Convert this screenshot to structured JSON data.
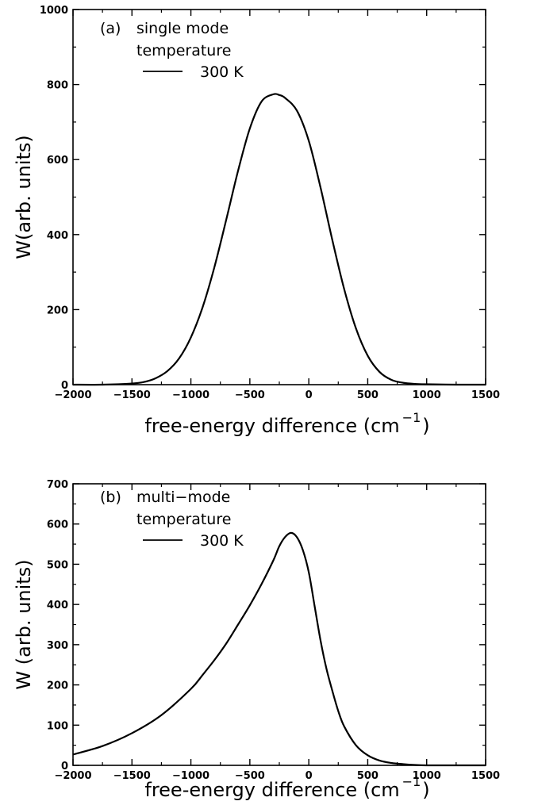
{
  "chart_data": [
    {
      "type": "line",
      "panel_label": "(a)",
      "xlabel": "free-energy difference (cm",
      "xlabel_suffix": ")",
      "xlabel_superscript": "−1",
      "ylabel": "W(arb. units)",
      "xlim": [
        -2000,
        1500
      ],
      "ylim": [
        0,
        1000
      ],
      "xticks": [
        -2000,
        -1500,
        -1000,
        -500,
        0,
        500,
        1000,
        1500
      ],
      "yticks": [
        0,
        200,
        400,
        600,
        800,
        1000
      ],
      "xtick_labels": [
        "−2000",
        "−1500",
        "−1000",
        "−500",
        "0",
        "500",
        "1000",
        "1500"
      ],
      "ytick_labels": [
        "0",
        "200",
        "400",
        "600",
        "800",
        "1000"
      ],
      "legend": {
        "line1": "single mode",
        "line2": "temperature",
        "entry": "300 K",
        "placement": "top-left"
      },
      "series": [
        {
          "name": "300 K",
          "x": [
            -2000,
            -1750,
            -1500,
            -1400,
            -1300,
            -1200,
            -1100,
            -1000,
            -900,
            -800,
            -700,
            -600,
            -500,
            -400,
            -300,
            -250,
            -200,
            -100,
            0,
            100,
            200,
            300,
            400,
            500,
            600,
            700,
            800,
            900,
            1000,
            1250,
            1500
          ],
          "y": [
            0,
            0,
            3,
            7,
            17,
            36,
            70,
            126,
            207,
            314,
            440,
            570,
            683,
            755,
            774,
            772,
            764,
            730,
            650,
            525,
            385,
            255,
            150,
            77,
            34,
            13,
            5,
            2,
            1,
            0,
            0
          ]
        }
      ]
    },
    {
      "type": "line",
      "panel_label": "(b)",
      "xlabel": "free-energy difference (cm",
      "xlabel_suffix": ")",
      "xlabel_superscript": "−1",
      "ylabel": "W (arb. units)",
      "xlim": [
        -2000,
        1500
      ],
      "ylim": [
        0,
        700
      ],
      "xticks": [
        -2000,
        -1500,
        -1000,
        -500,
        0,
        500,
        1000,
        1500
      ],
      "yticks": [
        0,
        100,
        200,
        300,
        400,
        500,
        600,
        700
      ],
      "xtick_labels": [
        "−2000",
        "−1500",
        "−1000",
        "−500",
        "0",
        "500",
        "1000",
        "1500"
      ],
      "ytick_labels": [
        "0",
        "100",
        "200",
        "300",
        "400",
        "500",
        "600",
        "700"
      ],
      "legend": {
        "line1": "multi−mode",
        "line2": "temperature",
        "entry": "300 K",
        "placement": "top-left"
      },
      "series": [
        {
          "name": "300 K",
          "x": [
            -2000,
            -1750,
            -1500,
            -1250,
            -1000,
            -900,
            -800,
            -700,
            -600,
            -500,
            -400,
            -300,
            -250,
            -200,
            -150,
            -100,
            -50,
            0,
            50,
            100,
            150,
            200,
            250,
            300,
            400,
            500,
            600,
            700,
            800,
            900,
            1000,
            1250,
            1500
          ],
          "y": [
            27,
            48,
            80,
            125,
            190,
            225,
            262,
            303,
            350,
            398,
            451,
            510,
            545,
            568,
            578,
            567,
            535,
            480,
            395,
            310,
            240,
            185,
            135,
            97,
            50,
            25,
            12,
            6,
            3,
            1,
            0,
            0,
            0
          ]
        }
      ]
    }
  ]
}
